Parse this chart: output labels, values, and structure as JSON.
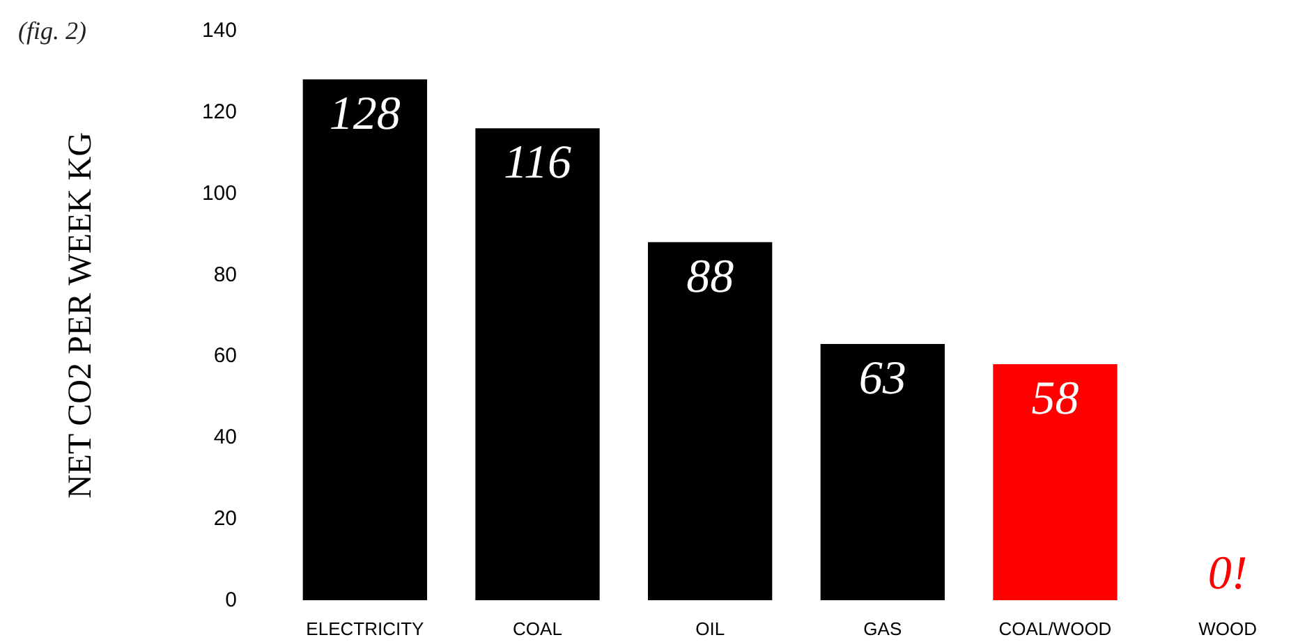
{
  "chart_data": {
    "type": "bar",
    "ylabel": "NET CO2 PER WEEK KG",
    "annotations": [
      "(fig. 2)"
    ],
    "categories": [
      "ELECTRICITY",
      "COAL",
      "OIL",
      "GAS",
      "COAL/WOOD",
      "WOOD"
    ],
    "values": [
      128,
      116,
      88,
      63,
      58,
      0
    ],
    "colors": [
      "#000000",
      "#000000",
      "#000000",
      "#000000",
      "#ff0000",
      "#ff0000"
    ],
    "value_labels": [
      "128",
      "116",
      "88",
      "63",
      "58",
      "0!"
    ],
    "ylim": [
      0,
      140
    ],
    "yticks": [
      0,
      20,
      40,
      60,
      80,
      100,
      120,
      140
    ],
    "grid": false
  }
}
